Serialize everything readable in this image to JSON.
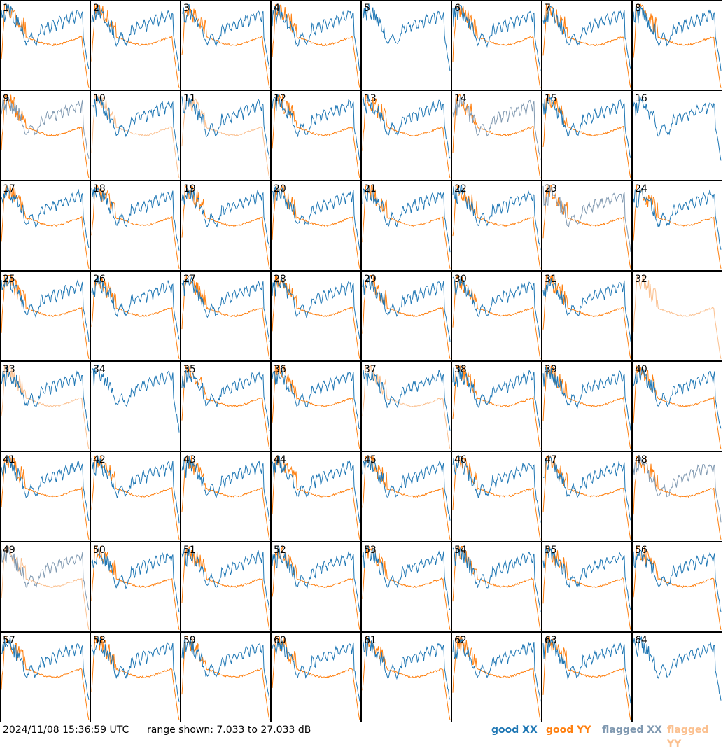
{
  "chart_data": {
    "type": "line",
    "panel_labels": [
      "1",
      "2",
      "3",
      "4",
      "5",
      "6",
      "7",
      "8",
      "9",
      "10",
      "11",
      "12",
      "13",
      "14",
      "15",
      "16",
      "17",
      "18",
      "19",
      "20",
      "21",
      "22",
      "23",
      "24",
      "25",
      "26",
      "27",
      "28",
      "29",
      "30",
      "31",
      "32",
      "33",
      "34",
      "35",
      "36",
      "37",
      "38",
      "39",
      "40",
      "41",
      "42",
      "43",
      "44",
      "45",
      "46",
      "47",
      "48",
      "49",
      "50",
      "51",
      "52",
      "53",
      "54",
      "55",
      "56",
      "57",
      "58",
      "59",
      "60",
      "61",
      "62",
      "63",
      "64"
    ],
    "y_range_db": [
      7.033,
      27.033
    ],
    "series": [
      {
        "name": "good XX",
        "color": "#1f77b4"
      },
      {
        "name": "good YY",
        "color": "#ff7f0e"
      },
      {
        "name": "flagged XX",
        "color": "#7f98b0"
      },
      {
        "name": "flagged YY",
        "color": "#fbc08f"
      }
    ],
    "flagged_xx_panels": [
      9,
      14,
      23,
      48,
      49
    ],
    "flagged_yy_panels": [
      10,
      11,
      32,
      33,
      37,
      49
    ],
    "xx_missing_panels": [
      32
    ],
    "yy_missing_panels": [
      5,
      16,
      34,
      64
    ]
  },
  "footer": {
    "timestamp": "2024/11/08 15:36:59 UTC",
    "range_text": "range shown: 7.033 to 27.033 dB",
    "legend": [
      {
        "text": "good",
        "pol": "XX",
        "color": "#1f77b4"
      },
      {
        "text": "good",
        "pol": "YY",
        "color": "#ff7f0e"
      },
      {
        "text": "flagged",
        "pol": "XX",
        "color": "#7f98b0"
      },
      {
        "text": "flagged",
        "pol": "YY",
        "color": "#fbc08f"
      }
    ]
  }
}
